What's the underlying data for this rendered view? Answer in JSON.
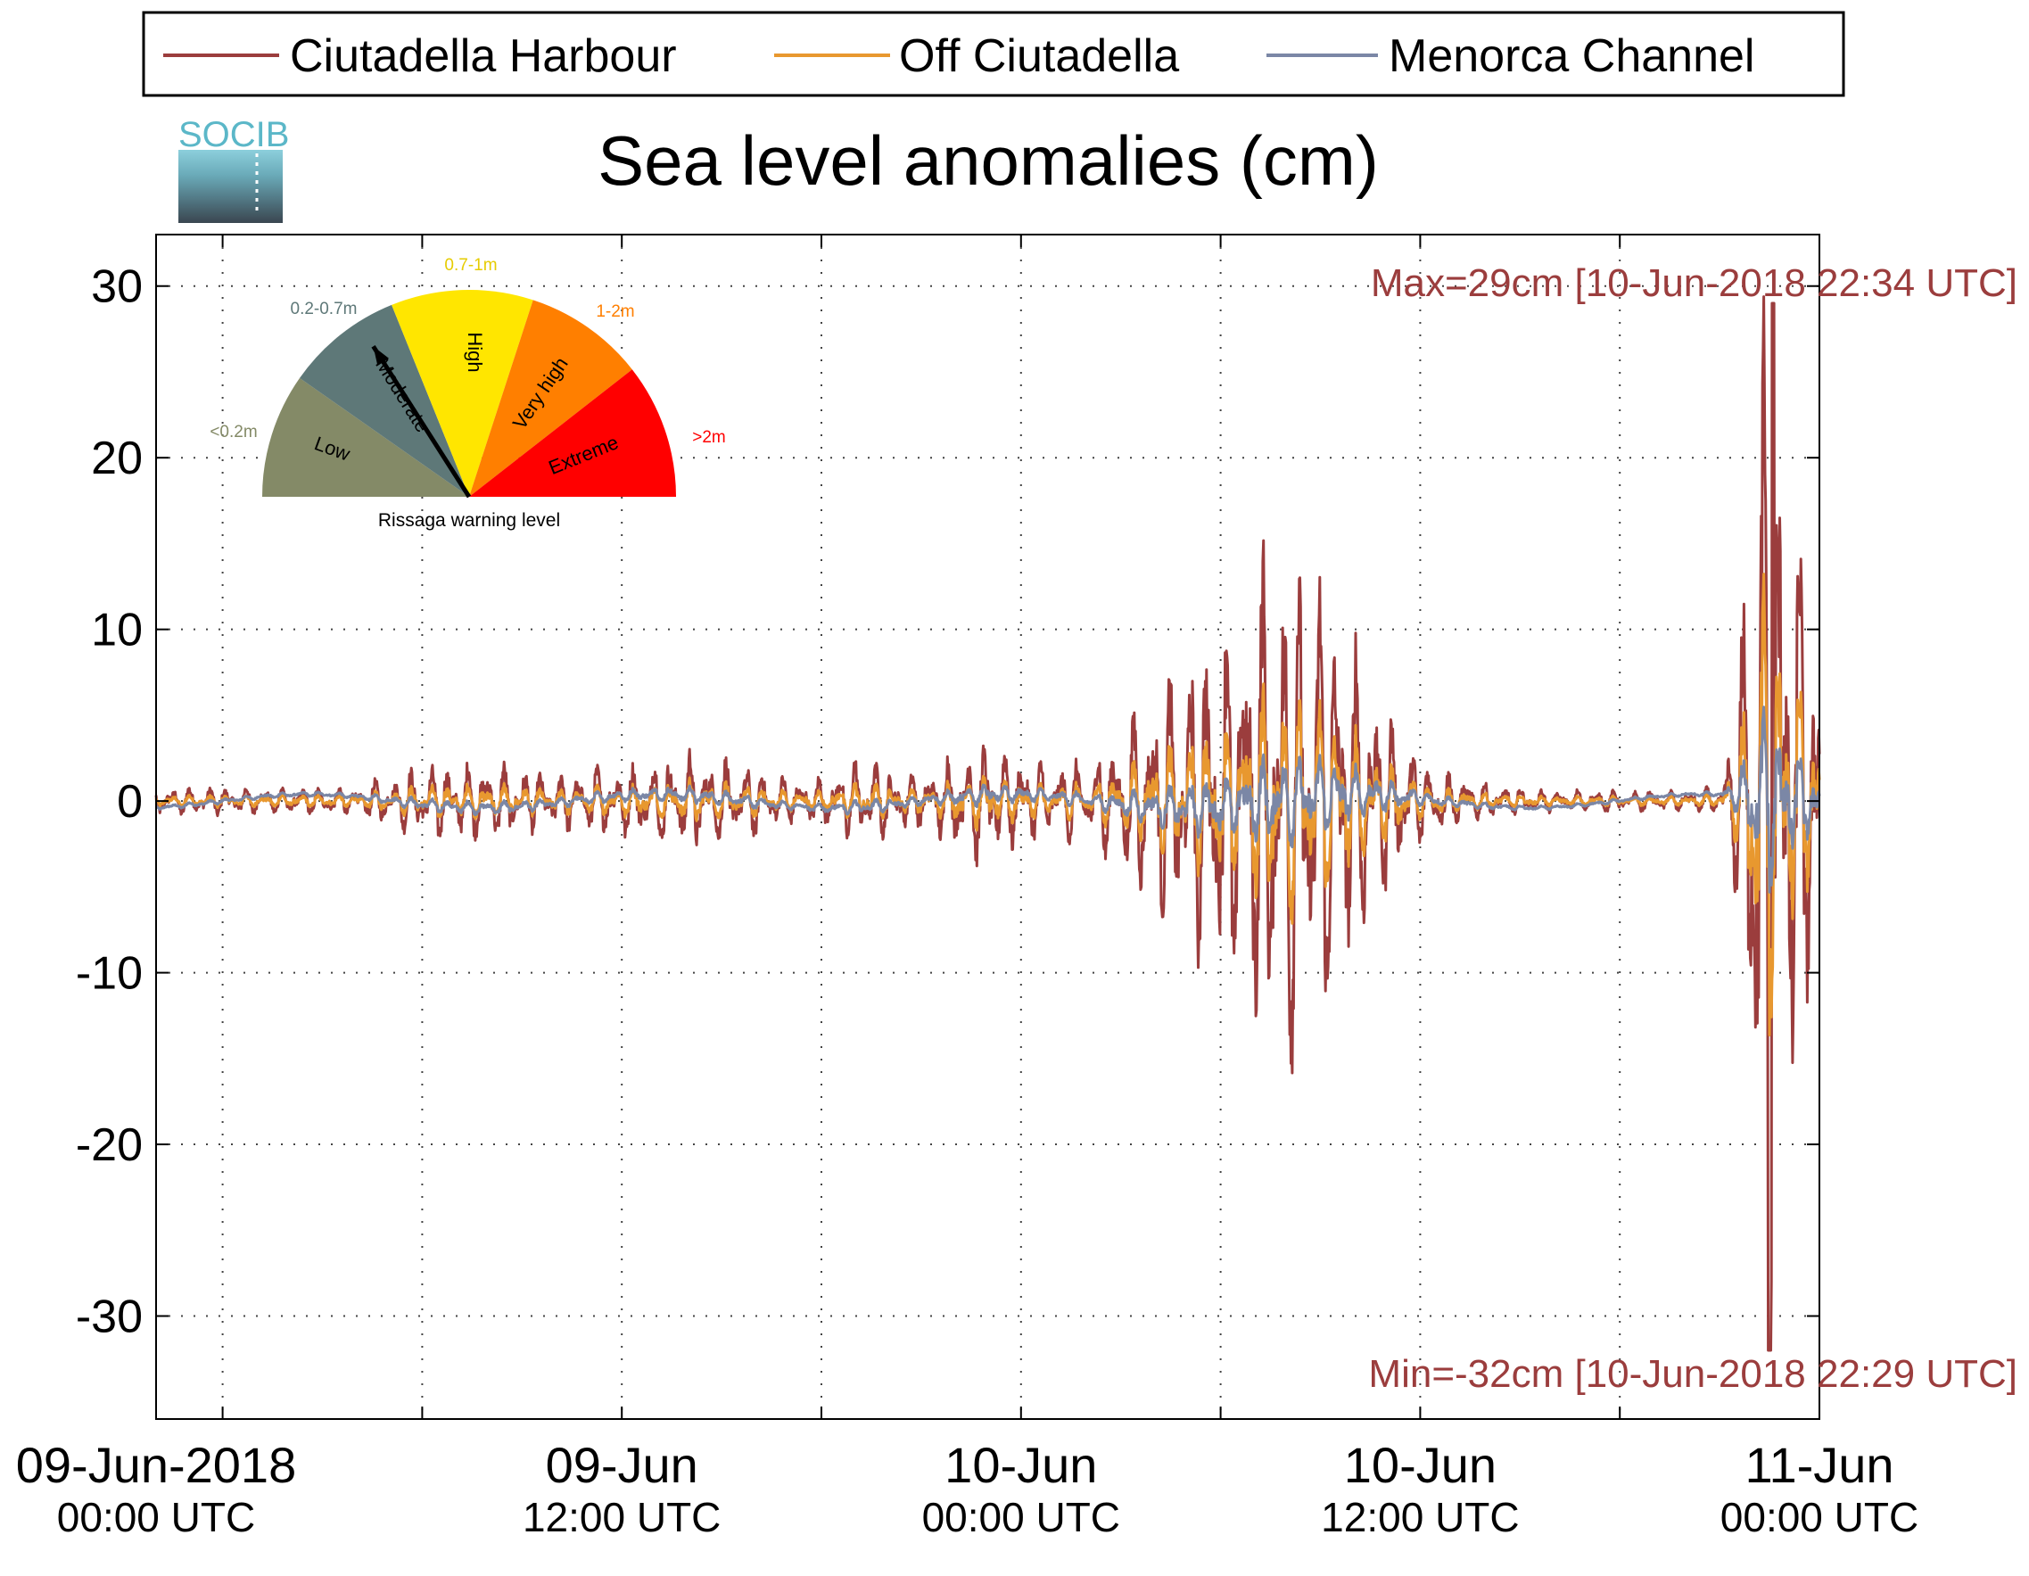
{
  "chart_data": {
    "type": "line",
    "title": "Sea level anomalies (cm)",
    "xlabel": "",
    "ylabel": "",
    "ylim": [
      -36,
      33
    ],
    "y_ticks": [
      -30,
      -20,
      -10,
      0,
      10,
      20,
      30
    ],
    "grid": true,
    "legend_position": "top",
    "x_ticks": [
      {
        "line1": "09-Jun-2018",
        "line2": "00:00 UTC"
      },
      {
        "line1": "09-Jun",
        "line2": "12:00 UTC"
      },
      {
        "line1": "10-Jun",
        "line2": "00:00 UTC"
      },
      {
        "line1": "10-Jun",
        "line2": "12:00 UTC"
      },
      {
        "line1": "11-Jun",
        "line2": "00:00 UTC"
      }
    ],
    "series": [
      {
        "name": "Ciutadella Harbour",
        "color": "#9b3d3d"
      },
      {
        "name": "Off Ciutadella",
        "color": "#e8982f"
      },
      {
        "name": "Menorca Channel",
        "color": "#7b87a6"
      }
    ],
    "annotations": {
      "max_text": "Max=29cm [10-Jun-2018 22:34 UTC]",
      "min_text": "Min=-32cm [10-Jun-2018 22:29 UTC]",
      "max_value": 29,
      "min_value": -32,
      "color": "#9b3d3d"
    },
    "envelope": {
      "hours": [
        0,
        4,
        6,
        8,
        10,
        12,
        14,
        16,
        17,
        18,
        19,
        20,
        21,
        22,
        23,
        24,
        25,
        26,
        27,
        28,
        29,
        30,
        31,
        32,
        33,
        34,
        35,
        36,
        37,
        38,
        39,
        40,
        41,
        42,
        43,
        44,
        45,
        45.5,
        46,
        46.5,
        47,
        47.5,
        48
      ],
      "harbour_amplitude": [
        0.8,
        0.8,
        2.0,
        2.2,
        1.6,
        2.0,
        2.8,
        2.0,
        1.3,
        1.3,
        2.5,
        2.0,
        1.5,
        2.8,
        3.5,
        2.5,
        2.0,
        2.5,
        4.0,
        6.0,
        8.0,
        10.0,
        13.0,
        15.0,
        13.0,
        9.0,
        5.0,
        2.5,
        1.5,
        1.0,
        0.8,
        0.6,
        0.6,
        0.6,
        0.6,
        0.6,
        0.8,
        5.0,
        22.0,
        31.0,
        22.0,
        14.0,
        10.0
      ],
      "series_scale": [
        1.0,
        0.45,
        0.18
      ]
    },
    "gauge": {
      "caption": "Rissaga warning level",
      "needle_level": "Moderate",
      "sectors": [
        {
          "label": "Low",
          "range_label": "<0.2m",
          "color": "#848a67",
          "label_color": "#848a67"
        },
        {
          "label": "Moderate",
          "range_label": "0.2-0.7m",
          "color": "#5e7878",
          "label_color": "#5e7878"
        },
        {
          "label": "High",
          "range_label": "0.7-1m",
          "color": "#ffe600",
          "label_color": "#e6cc00"
        },
        {
          "label": "Very high",
          "range_label": "1-2m",
          "color": "#ff7f00",
          "label_color": "#ff7f00"
        },
        {
          "label": "Extreme",
          "range_label": ">2m",
          "color": "#ff0000",
          "label_color": "#ff0000"
        }
      ]
    }
  },
  "logo": {
    "text": "SOCIB",
    "color": "#5bb7c8"
  }
}
